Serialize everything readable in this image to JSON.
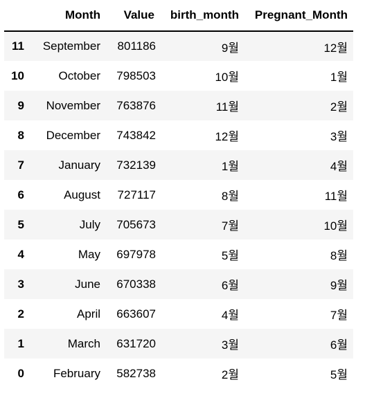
{
  "table": {
    "columns": {
      "index": "",
      "month": "Month",
      "value": "Value",
      "birth_month": "birth_month",
      "pregnant_month": "Pregnant_Month"
    },
    "rows": [
      {
        "index": "11",
        "month": "September",
        "value": "801186",
        "birth_month": "9월",
        "pregnant_month": "12월"
      },
      {
        "index": "10",
        "month": "October",
        "value": "798503",
        "birth_month": "10월",
        "pregnant_month": "1월"
      },
      {
        "index": "9",
        "month": "November",
        "value": "763876",
        "birth_month": "11월",
        "pregnant_month": "2월"
      },
      {
        "index": "8",
        "month": "December",
        "value": "743842",
        "birth_month": "12월",
        "pregnant_month": "3월"
      },
      {
        "index": "7",
        "month": "January",
        "value": "732139",
        "birth_month": "1월",
        "pregnant_month": "4월"
      },
      {
        "index": "6",
        "month": "August",
        "value": "727117",
        "birth_month": "8월",
        "pregnant_month": "11월"
      },
      {
        "index": "5",
        "month": "July",
        "value": "705673",
        "birth_month": "7월",
        "pregnant_month": "10월"
      },
      {
        "index": "4",
        "month": "May",
        "value": "697978",
        "birth_month": "5월",
        "pregnant_month": "8월"
      },
      {
        "index": "3",
        "month": "June",
        "value": "670338",
        "birth_month": "6월",
        "pregnant_month": "9월"
      },
      {
        "index": "2",
        "month": "April",
        "value": "663607",
        "birth_month": "4월",
        "pregnant_month": "7월"
      },
      {
        "index": "1",
        "month": "March",
        "value": "631720",
        "birth_month": "3월",
        "pregnant_month": "6월"
      },
      {
        "index": "0",
        "month": "February",
        "value": "582738",
        "birth_month": "2월",
        "pregnant_month": "5월"
      }
    ]
  },
  "colors": {
    "stripe": "#f5f5f5",
    "background": "#ffffff",
    "text": "#000000",
    "header_rule": "#000000"
  }
}
